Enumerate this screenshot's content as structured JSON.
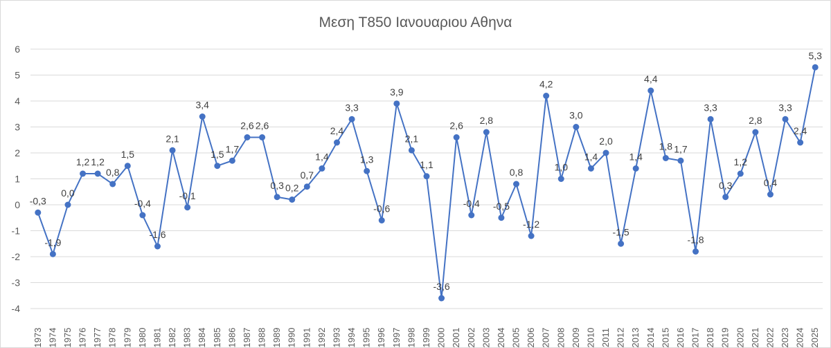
{
  "chart_data": {
    "type": "line",
    "title": "Μεση Τ850 Ιανουαριου Αθηνα",
    "xlabel": "",
    "ylabel": "",
    "ylim": [
      -4,
      6
    ],
    "yticks": [
      "-4",
      "-3",
      "-2",
      "-1",
      "0",
      "1",
      "2",
      "3",
      "4",
      "5",
      "6"
    ],
    "grid": true,
    "legend": "none",
    "color": "#4472c4",
    "x": [
      1973,
      1974,
      1975,
      1976,
      1977,
      1978,
      1979,
      1980,
      1981,
      1982,
      1983,
      1984,
      1985,
      1986,
      1987,
      1988,
      1989,
      1990,
      1991,
      1992,
      1993,
      1994,
      1995,
      1996,
      1997,
      1998,
      1999,
      2000,
      2001,
      2002,
      2003,
      2004,
      2005,
      2006,
      2007,
      2008,
      2009,
      2010,
      2011,
      2012,
      2013,
      2014,
      2015,
      2016,
      2017,
      2018,
      2019,
      2020,
      2021,
      2022,
      2023,
      2024,
      2025
    ],
    "y": [
      -0.3,
      -1.9,
      0.0,
      1.2,
      1.2,
      0.8,
      1.5,
      -0.4,
      -1.6,
      2.1,
      -0.1,
      3.4,
      1.5,
      1.7,
      2.6,
      2.6,
      0.3,
      0.2,
      0.7,
      1.4,
      2.4,
      3.3,
      1.3,
      -0.6,
      3.9,
      2.1,
      1.1,
      -3.6,
      2.6,
      -0.4,
      2.8,
      -0.5,
      0.8,
      -1.2,
      4.2,
      1.0,
      3.0,
      1.4,
      2.0,
      -1.5,
      1.4,
      4.4,
      1.8,
      1.7,
      -1.8,
      3.3,
      0.3,
      1.2,
      2.8,
      0.4,
      3.3,
      2.4,
      5.3
    ],
    "labels": [
      "-0,3",
      "-1,9",
      "0,0",
      "1,2",
      "1,2",
      "0,8",
      "1,5",
      "-0,4",
      "-1,6",
      "2,1",
      "-0,1",
      "3,4",
      "1,5",
      "1,7",
      "2,6",
      "2,6",
      "0,3",
      "0,2",
      "0,7",
      "1,4",
      "2,4",
      "3,3",
      "1,3",
      "-0,6",
      "3,9",
      "2,1",
      "1,1",
      "-3,6",
      "2,6",
      "-0,4",
      "2,8",
      "-0,5",
      "0,8",
      "-1,2",
      "4,2",
      "1,0",
      "3,0",
      "1,4",
      "2,0",
      "-1,5",
      "1,4",
      "4,4",
      "1,8",
      "1,7",
      "-1,8",
      "3,3",
      "0,3",
      "1,2",
      "2,8",
      "0,4",
      "3,3",
      "2,4",
      "5,3"
    ]
  }
}
